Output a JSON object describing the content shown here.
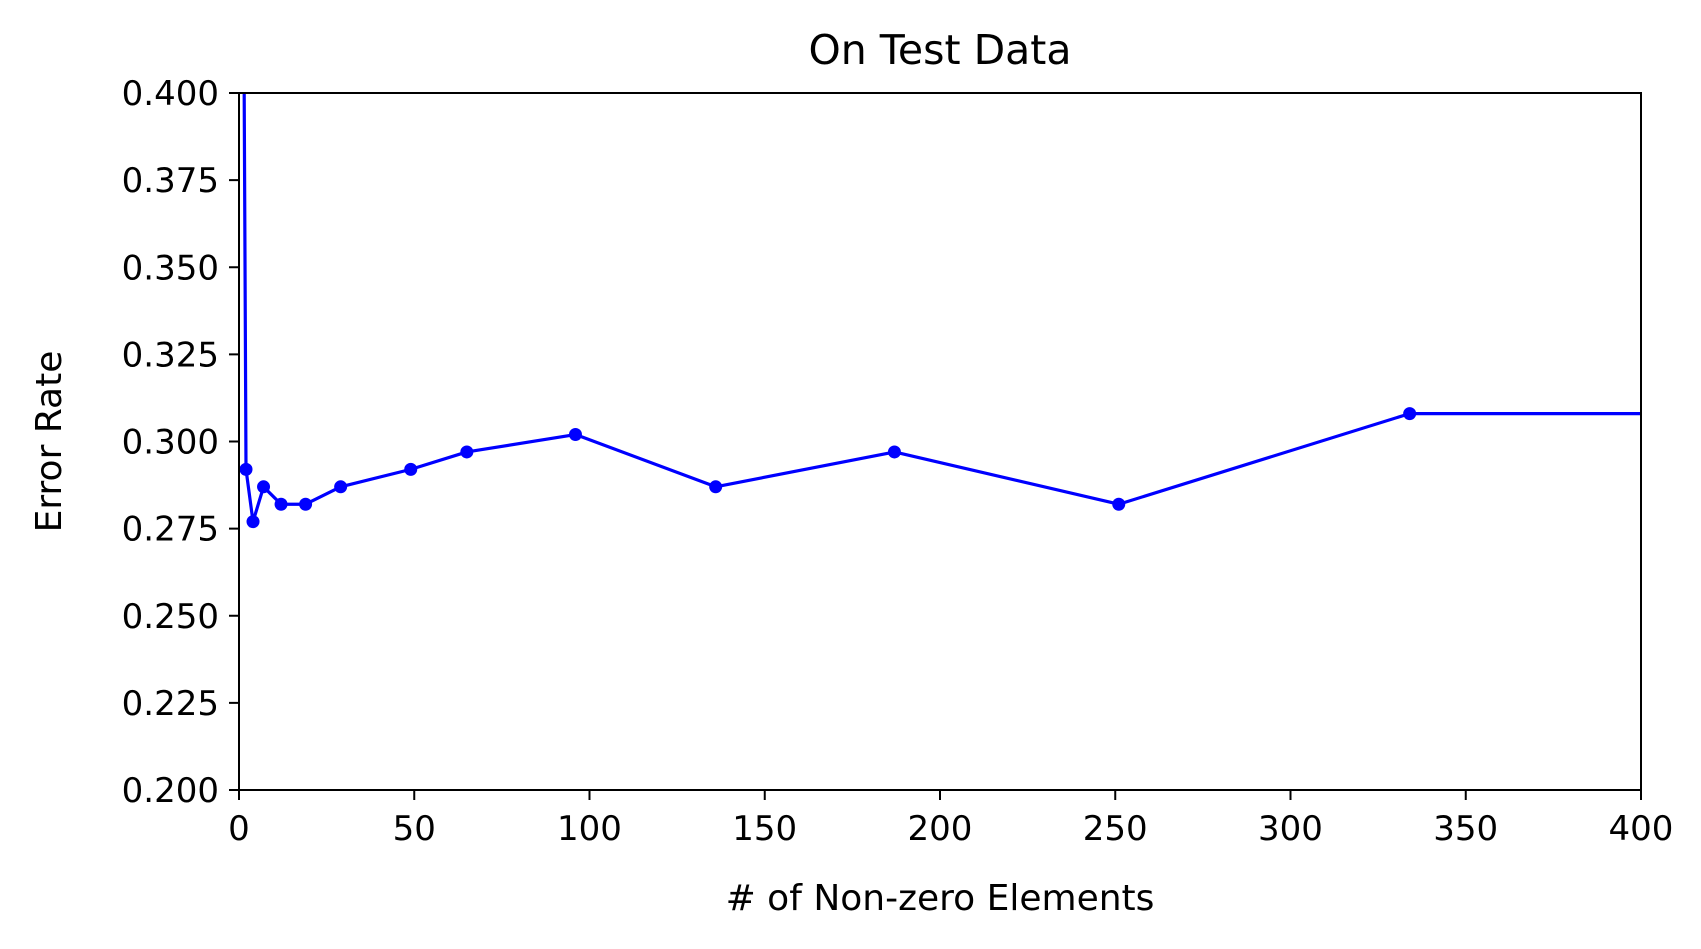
{
  "chart_data": {
    "type": "line",
    "title": "On Test Data",
    "xlabel": "# of Non-zero Elements",
    "ylabel": "Error Rate",
    "xlim": [
      0,
      400
    ],
    "ylim": [
      0.2,
      0.4
    ],
    "xticks": [
      0,
      50,
      100,
      150,
      200,
      250,
      300,
      350,
      400
    ],
    "xtick_labels": [
      "0",
      "50",
      "100",
      "150",
      "200",
      "250",
      "300",
      "350",
      "400"
    ],
    "yticks": [
      0.2,
      0.225,
      0.25,
      0.275,
      0.3,
      0.325,
      0.35,
      0.375,
      0.4
    ],
    "ytick_labels": [
      "0.200",
      "0.225",
      "0.250",
      "0.275",
      "0.300",
      "0.325",
      "0.350",
      "0.375",
      "0.400"
    ],
    "grid": false,
    "legend": "none",
    "series": [
      {
        "color": "#0000ff",
        "marker": "circle",
        "x": [
          1,
          2,
          4,
          7,
          12,
          19,
          29,
          49,
          65,
          96,
          136,
          187,
          251,
          334,
          400
        ],
        "y": [
          0.5,
          0.292,
          0.277,
          0.287,
          0.282,
          0.282,
          0.287,
          0.292,
          0.297,
          0.302,
          0.287,
          0.297,
          0.282,
          0.308,
          0.308
        ],
        "marked": [
          false,
          true,
          true,
          true,
          true,
          true,
          true,
          true,
          true,
          true,
          true,
          true,
          true,
          true,
          false
        ]
      }
    ]
  }
}
